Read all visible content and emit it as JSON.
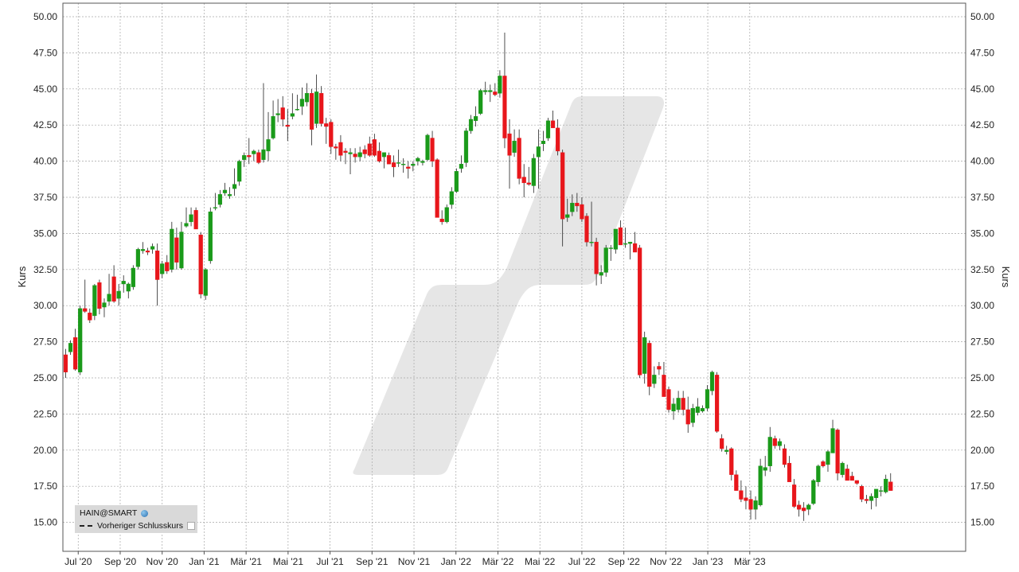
{
  "chart_data": {
    "type": "candlestick",
    "ylabel_left": "Kurs",
    "ylabel_right": "Kurs",
    "ylim": [
      13.5,
      51.0
    ],
    "yticks": [
      "15.00",
      "17.50",
      "20.00",
      "22.50",
      "25.00",
      "27.50",
      "30.00",
      "32.50",
      "35.00",
      "37.50",
      "40.00",
      "42.50",
      "45.00",
      "47.50",
      "50.00"
    ],
    "xticks": [
      "Jul '20",
      "Sep '20",
      "Nov '20",
      "Jan '21",
      "Mär '21",
      "Mai '21",
      "Jul '21",
      "Sep '21",
      "Nov '21",
      "Jan '22",
      "Mär '22",
      "Mai '22",
      "Jul '22",
      "Sep '22",
      "Nov '22",
      "Jan '23",
      "Mär '23"
    ],
    "xtick_positions": [
      2.6,
      11.3,
      20.0,
      28.7,
      37.4,
      46.1,
      54.8,
      63.5,
      72.2,
      80.9,
      89.6,
      98.3,
      107.0,
      115.7,
      124.4,
      133.1,
      141.8
    ],
    "grid": true,
    "up_color": "#1a9a1a",
    "down_color": "#e8161b",
    "candles": [
      [
        26.6,
        27.0,
        25.0,
        25.4
      ],
      [
        26.8,
        27.6,
        26.6,
        27.4
      ],
      [
        27.8,
        28.4,
        25.5,
        25.6
      ],
      [
        25.4,
        30.0,
        25.2,
        29.8
      ],
      [
        29.8,
        31.8,
        29.5,
        29.6
      ],
      [
        29.5,
        29.8,
        28.8,
        29.0
      ],
      [
        29.3,
        31.5,
        29.0,
        31.4
      ],
      [
        31.6,
        31.8,
        29.4,
        29.8
      ],
      [
        29.9,
        30.5,
        29.2,
        30.2
      ],
      [
        30.3,
        32.2,
        30.0,
        30.8
      ],
      [
        32.0,
        32.8,
        30.2,
        30.3
      ],
      [
        30.5,
        31.5,
        30.0,
        31.0
      ],
      [
        31.5,
        32.1,
        30.9,
        31.7
      ],
      [
        31.0,
        31.6,
        30.5,
        31.5
      ],
      [
        31.3,
        32.8,
        31.1,
        32.6
      ],
      [
        32.7,
        34.0,
        32.5,
        33.9
      ],
      [
        33.8,
        34.4,
        33.6,
        33.9
      ],
      [
        33.8,
        34.0,
        33.5,
        33.7
      ],
      [
        33.9,
        34.3,
        33.6,
        34.1
      ],
      [
        33.8,
        34.3,
        30.0,
        31.8
      ],
      [
        32.2,
        33.1,
        31.9,
        32.9
      ],
      [
        33.0,
        33.5,
        32.2,
        32.4
      ],
      [
        32.5,
        35.8,
        32.3,
        35.3
      ],
      [
        34.7,
        35.4,
        32.5,
        33.0
      ],
      [
        32.6,
        35.8,
        32.5,
        35.1
      ],
      [
        35.5,
        36.8,
        35.4,
        35.7
      ],
      [
        35.8,
        36.8,
        35.5,
        36.3
      ],
      [
        36.6,
        36.8,
        35.6,
        35.3
      ],
      [
        34.9,
        35.1,
        30.5,
        30.8
      ],
      [
        30.7,
        32.6,
        30.4,
        32.5
      ],
      [
        33.1,
        36.8,
        32.9,
        36.5
      ],
      [
        36.8,
        37.8,
        36.6,
        36.8
      ],
      [
        37.0,
        38.0,
        36.8,
        37.7
      ],
      [
        37.8,
        38.5,
        37.6,
        38.0
      ],
      [
        37.6,
        38.2,
        37.4,
        37.7
      ],
      [
        38.1,
        39.5,
        37.6,
        38.4
      ],
      [
        38.6,
        40.1,
        38.3,
        40.0
      ],
      [
        40.1,
        40.6,
        39.6,
        40.4
      ],
      [
        40.4,
        41.6,
        39.8,
        40.3
      ],
      [
        40.5,
        40.8,
        40.0,
        40.7
      ],
      [
        40.6,
        40.8,
        39.8,
        39.9
      ],
      [
        40.1,
        45.4,
        39.9,
        40.8
      ],
      [
        40.7,
        43.4,
        40.0,
        41.5
      ],
      [
        41.6,
        44.2,
        41.5,
        43.1
      ],
      [
        43.2,
        44.3,
        42.7,
        43.3
      ],
      [
        43.7,
        44.5,
        42.4,
        42.9
      ],
      [
        42.5,
        43.6,
        41.4,
        42.4
      ],
      [
        43.1,
        44.7,
        42.9,
        43.3
      ],
      [
        43.6,
        44.6,
        43.5,
        43.6
      ],
      [
        43.8,
        45.1,
        43.2,
        44.3
      ],
      [
        44.1,
        45.4,
        43.8,
        44.7
      ],
      [
        44.7,
        45.0,
        41.1,
        42.2
      ],
      [
        42.6,
        46.0,
        42.3,
        44.8
      ],
      [
        44.7,
        45.2,
        42.4,
        42.6
      ],
      [
        42.6,
        43.0,
        41.2,
        42.4
      ],
      [
        42.7,
        42.9,
        40.5,
        41.0
      ],
      [
        41.0,
        41.2,
        40.1,
        40.9
      ],
      [
        41.3,
        41.8,
        40.0,
        40.4
      ],
      [
        40.7,
        40.9,
        39.8,
        40.6
      ],
      [
        40.5,
        40.9,
        39.1,
        40.6
      ],
      [
        40.5,
        40.9,
        39.9,
        40.3
      ],
      [
        40.3,
        41.0,
        40.0,
        40.6
      ],
      [
        40.8,
        41.1,
        40.2,
        40.5
      ],
      [
        41.2,
        41.7,
        40.3,
        40.4
      ],
      [
        41.5,
        41.9,
        40.3,
        40.4
      ],
      [
        40.7,
        41.3,
        39.9,
        40.0
      ],
      [
        40.3,
        40.6,
        39.5,
        40.6
      ],
      [
        40.4,
        40.6,
        39.8,
        39.8
      ],
      [
        39.9,
        40.4,
        38.9,
        39.6
      ],
      [
        39.9,
        40.8,
        39.6,
        39.9
      ],
      [
        39.8,
        40.2,
        39.2,
        39.8
      ],
      [
        39.6,
        40.0,
        38.8,
        39.5
      ],
      [
        39.7,
        40.0,
        39.3,
        39.8
      ],
      [
        40.0,
        40.3,
        39.7,
        40.2
      ],
      [
        39.9,
        40.1,
        39.7,
        40.0
      ],
      [
        40.1,
        41.9,
        40.0,
        41.8
      ],
      [
        41.6,
        42.1,
        39.6,
        40.0
      ],
      [
        40.1,
        40.2,
        36.2,
        36.1
      ],
      [
        36.0,
        36.6,
        35.6,
        35.8
      ],
      [
        35.8,
        37.0,
        35.7,
        36.8
      ],
      [
        37.0,
        38.2,
        36.7,
        37.9
      ],
      [
        37.9,
        39.5,
        37.8,
        39.3
      ],
      [
        39.5,
        40.4,
        39.2,
        39.8
      ],
      [
        39.9,
        42.3,
        39.6,
        42.1
      ],
      [
        42.1,
        43.2,
        41.9,
        42.9
      ],
      [
        42.8,
        43.8,
        42.4,
        43.1
      ],
      [
        43.3,
        45.0,
        43.2,
        44.9
      ],
      [
        44.8,
        45.5,
        44.6,
        44.9
      ],
      [
        44.8,
        45.3,
        44.1,
        44.9
      ],
      [
        44.8,
        45.4,
        44.5,
        44.6
      ],
      [
        44.7,
        46.3,
        44.4,
        45.9
      ],
      [
        45.9,
        48.9,
        40.9,
        41.6
      ],
      [
        41.9,
        42.9,
        38.1,
        40.4
      ],
      [
        40.6,
        42.2,
        40.3,
        41.4
      ],
      [
        41.6,
        42.2,
        38.4,
        38.8
      ],
      [
        38.9,
        39.8,
        37.5,
        38.5
      ],
      [
        38.5,
        39.6,
        38.3,
        38.4
      ],
      [
        38.3,
        40.5,
        37.8,
        40.2
      ],
      [
        40.3,
        42.2,
        38.1,
        41.0
      ],
      [
        41.2,
        42.1,
        40.7,
        41.4
      ],
      [
        41.6,
        43.0,
        41.4,
        42.8
      ],
      [
        42.8,
        43.5,
        42.5,
        42.3
      ],
      [
        42.3,
        42.9,
        40.4,
        40.7
      ],
      [
        40.6,
        40.8,
        34.1,
        36.0
      ],
      [
        36.1,
        37.4,
        35.8,
        36.3
      ],
      [
        36.5,
        37.7,
        36.2,
        37.1
      ],
      [
        37.1,
        37.8,
        36.5,
        36.9
      ],
      [
        37.0,
        37.5,
        35.8,
        36.0
      ],
      [
        36.2,
        36.4,
        34.1,
        34.4
      ],
      [
        34.4,
        37.2,
        34.1,
        34.4
      ],
      [
        34.4,
        34.7,
        31.4,
        32.2
      ],
      [
        32.1,
        32.8,
        31.5,
        32.3
      ],
      [
        32.3,
        34.2,
        32.0,
        34.0
      ],
      [
        34.0,
        34.2,
        33.1,
        34.0
      ],
      [
        33.9,
        35.3,
        33.6,
        35.3
      ],
      [
        35.4,
        35.9,
        34.2,
        34.2
      ],
      [
        34.3,
        35.4,
        34.0,
        34.3
      ],
      [
        34.3,
        34.4,
        33.2,
        34.4
      ],
      [
        34.3,
        35.1,
        33.8,
        33.7
      ],
      [
        34.0,
        34.2,
        25.0,
        25.2
      ],
      [
        25.3,
        28.2,
        24.6,
        27.8
      ],
      [
        27.4,
        27.6,
        23.8,
        24.4
      ],
      [
        24.6,
        25.8,
        24.3,
        25.2
      ],
      [
        25.8,
        26.1,
        25.2,
        25.6
      ],
      [
        25.2,
        26.1,
        23.8,
        23.7
      ],
      [
        24.2,
        24.4,
        22.6,
        22.8
      ],
      [
        22.7,
        23.6,
        22.1,
        23.2
      ],
      [
        22.8,
        24.1,
        22.6,
        23.6
      ],
      [
        23.6,
        24.1,
        22.4,
        22.8
      ],
      [
        22.8,
        23.7,
        21.2,
        21.8
      ],
      [
        21.9,
        23.2,
        21.6,
        22.9
      ],
      [
        22.6,
        23.6,
        22.4,
        23.0
      ],
      [
        22.7,
        23.1,
        22.6,
        22.9
      ],
      [
        22.9,
        24.5,
        22.7,
        24.2
      ],
      [
        24.1,
        25.5,
        23.8,
        25.4
      ],
      [
        25.2,
        25.4,
        21.2,
        21.3
      ],
      [
        20.8,
        21.1,
        19.9,
        20.1
      ],
      [
        19.9,
        20.3,
        19.7,
        20.0
      ],
      [
        20.1,
        20.2,
        17.9,
        18.3
      ],
      [
        18.3,
        18.6,
        17.2,
        17.2
      ],
      [
        17.2,
        17.9,
        16.4,
        16.6
      ],
      [
        16.7,
        17.5,
        15.9,
        16.5
      ],
      [
        16.6,
        17.2,
        15.2,
        15.9
      ],
      [
        15.9,
        16.8,
        15.2,
        16.5
      ],
      [
        16.2,
        19.4,
        16.1,
        18.9
      ],
      [
        18.6,
        19.6,
        18.2,
        18.8
      ],
      [
        18.9,
        21.6,
        18.5,
        20.9
      ],
      [
        20.8,
        21.0,
        20.1,
        20.3
      ],
      [
        20.3,
        20.8,
        20.0,
        20.6
      ],
      [
        20.1,
        20.4,
        18.8,
        19.0
      ],
      [
        19.1,
        19.6,
        17.9,
        17.8
      ],
      [
        17.6,
        18.0,
        16.0,
        16.1
      ],
      [
        16.2,
        16.5,
        15.4,
        15.9
      ],
      [
        16.0,
        16.4,
        15.1,
        15.8
      ],
      [
        15.9,
        16.3,
        15.5,
        16.2
      ],
      [
        16.3,
        18.0,
        16.2,
        17.9
      ],
      [
        17.8,
        19.0,
        17.5,
        18.9
      ],
      [
        19.2,
        19.3,
        18.8,
        18.9
      ],
      [
        19.0,
        20.0,
        18.5,
        19.9
      ],
      [
        19.8,
        22.1,
        19.8,
        21.5
      ],
      [
        21.4,
        21.5,
        17.9,
        18.4
      ],
      [
        18.3,
        19.2,
        18.1,
        19.1
      ],
      [
        18.7,
        19.0,
        17.9,
        17.9
      ],
      [
        18.2,
        18.5,
        17.9,
        17.9
      ],
      [
        17.9,
        17.9,
        17.6,
        17.7
      ],
      [
        17.5,
        17.6,
        16.4,
        16.6
      ],
      [
        16.6,
        16.9,
        16.3,
        16.5
      ],
      [
        16.5,
        17.0,
        15.9,
        16.8
      ],
      [
        16.7,
        17.2,
        16.1,
        17.3
      ],
      [
        17.2,
        17.5,
        16.8,
        17.2
      ],
      [
        17.1,
        18.3,
        17.0,
        18.0
      ],
      [
        17.8,
        18.4,
        17.2,
        17.2
      ]
    ]
  },
  "legend": {
    "series_name": "HAIN@SMART",
    "previous_close_label": "Vorheriger Schlusskurs"
  },
  "colors": {
    "grid": "#a6a6a6",
    "watermark": "#e6e6e6",
    "axis": "#555555"
  }
}
